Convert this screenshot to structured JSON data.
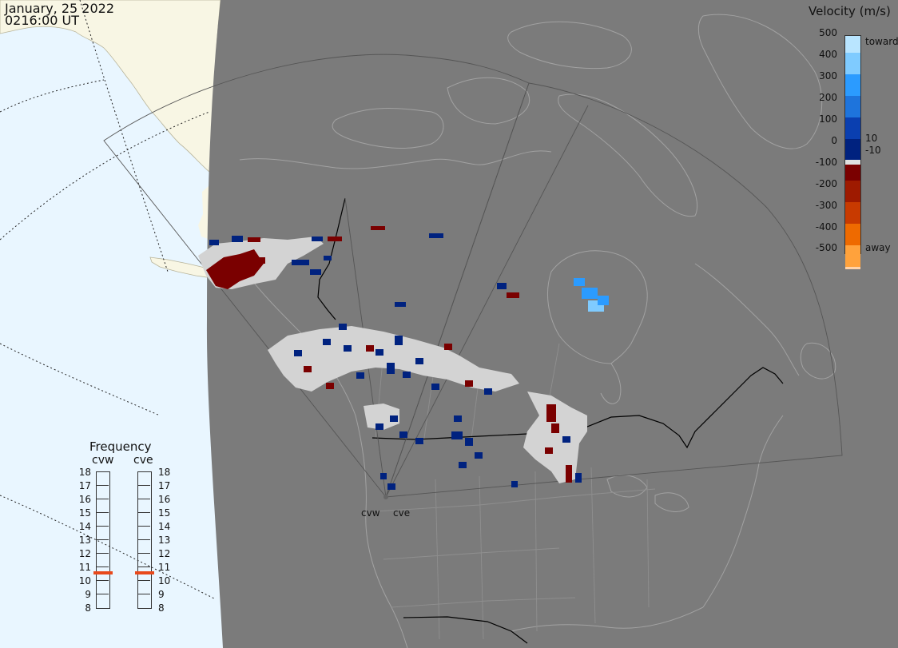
{
  "header": {
    "date": "January, 25 2022",
    "time": "0216:00 UT"
  },
  "velocity_scale": {
    "title": "Velocity (m/s)",
    "tick_labels": [
      "500",
      "400",
      "300",
      "200",
      "100",
      "10",
      "0",
      "-10",
      "-100",
      "-200",
      "-300",
      "-400",
      "-500"
    ],
    "toward_label": "toward",
    "away_label": "away",
    "colors": [
      "#b9e5ff",
      "#7fcbff",
      "#2b9bff",
      "#1e74dc",
      "#0a3fb0",
      "#00227f",
      "#e0e0e0",
      "#7a0000",
      "#9e1a00",
      "#c83a00",
      "#ee6a00",
      "#ffa23c",
      "#ffd2a8"
    ]
  },
  "frequency_panel": {
    "title": "Frequency",
    "radars": [
      {
        "label": "cvw",
        "frequency": 11
      },
      {
        "label": "cve",
        "frequency": 11
      }
    ],
    "scale_labels": [
      "18",
      "17",
      "16",
      "15",
      "14",
      "13",
      "12",
      "11",
      "10",
      "9",
      "8"
    ],
    "marker_color": "#e8491c"
  },
  "radar_sites": [
    {
      "label": "cvw"
    },
    {
      "label": "cve"
    }
  ],
  "map_colors": {
    "ocean": "#e9f6ff",
    "land_lit": "#f8f6e4",
    "night": "#7b7b7b",
    "coast": "#9c9c9c",
    "border": "#000000",
    "fov": "#555555",
    "ground_scatter": "#d3d3d3"
  }
}
